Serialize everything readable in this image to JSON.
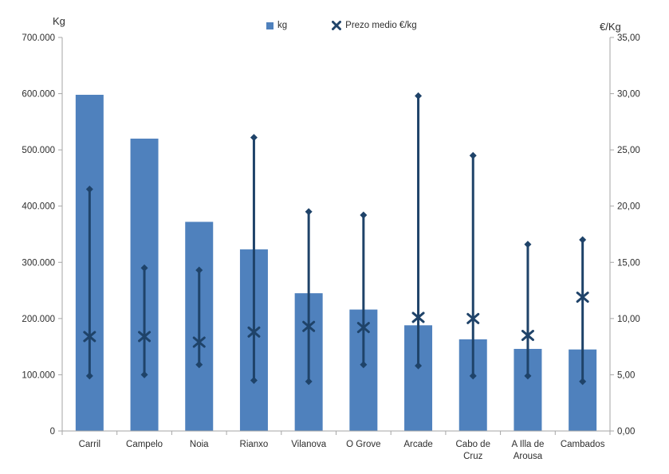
{
  "chart_data": {
    "type": "combo-bar-highlow",
    "categories": [
      "Carril",
      "Campelo",
      "Noia",
      "Rianxo",
      "Vilanova",
      "O Grove",
      "Arcade",
      "Cabo de Cruz",
      "A Illa de Arousa",
      "Cambados"
    ],
    "category_label_lines": [
      [
        "Carril"
      ],
      [
        "Campelo"
      ],
      [
        "Noia"
      ],
      [
        "Rianxo"
      ],
      [
        "Vilanova"
      ],
      [
        "O Grove"
      ],
      [
        "Arcade"
      ],
      [
        "Cabo de",
        "Cruz"
      ],
      [
        "A Illa de",
        "Arousa"
      ],
      [
        "Cambados"
      ]
    ],
    "left_axis": {
      "title": "Kg",
      "min": 0,
      "max": 700000,
      "tick_labels": [
        "700.000",
        "600.000",
        "500.000",
        "400.000",
        "300.000",
        "200.000",
        "100.000",
        "0"
      ]
    },
    "right_axis": {
      "title": "€/Kg",
      "min": 0,
      "max": 35,
      "tick_labels": [
        "35,00",
        "30,00",
        "25,00",
        "20,00",
        "15,00",
        "10,00",
        "5,00",
        "0,00"
      ]
    },
    "legend": {
      "items": [
        {
          "label": "kg",
          "swatch": "square"
        },
        {
          "label": "Prezo medio €/kg",
          "swatch": "x"
        }
      ]
    },
    "series": [
      {
        "id": "kg",
        "type": "bar",
        "axis": "left",
        "color": "#4F81BD",
        "values": [
          598000,
          520000,
          372000,
          323000,
          245000,
          216000,
          188000,
          163000,
          146000,
          145000
        ]
      },
      {
        "id": "prezo-medio",
        "type": "x-marker",
        "axis": "right",
        "color": "#1F4369",
        "values": [
          8.4,
          8.4,
          7.9,
          8.8,
          9.3,
          9.2,
          10.1,
          10.0,
          8.5,
          11.9
        ]
      },
      {
        "id": "prezo-maximo",
        "type": "range-high",
        "axis": "right",
        "color": "#1F4369",
        "values": [
          21.5,
          14.5,
          14.3,
          26.1,
          19.5,
          19.2,
          29.8,
          24.5,
          16.6,
          17.0
        ]
      },
      {
        "id": "prezo-minimo",
        "type": "range-low",
        "axis": "right",
        "color": "#1F4369",
        "values": [
          4.9,
          5.0,
          5.9,
          4.5,
          4.4,
          5.9,
          5.8,
          4.9,
          4.9,
          4.4
        ]
      }
    ],
    "gridlines": false,
    "plot_background": "#ffffff",
    "axis_line_color": "#a6a6a6"
  }
}
